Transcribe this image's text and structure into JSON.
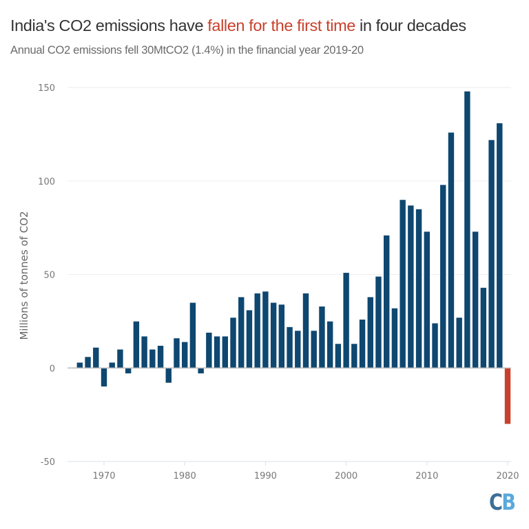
{
  "header": {
    "title_prefix": "India's CO2 emissions have ",
    "title_highlight": "fallen for the first time",
    "title_suffix": " in four decades",
    "subtitle": "Annual CO2 emissions fell 30MtCO2 (1.4%) in the financial year 2019-20"
  },
  "logo": {
    "c": "C",
    "b": "B"
  },
  "colors": {
    "bar": "#0e4770",
    "highlight": "#c8412c",
    "grid": "#eeeeee",
    "axis": "#bbbbbb"
  },
  "chart_data": {
    "type": "bar",
    "title": "India's CO2 emissions have fallen for the first time in four decades",
    "subtitle": "Annual CO2 emissions fell 30MtCO2 (1.4%) in the financial year 2019-20",
    "xlabel": "",
    "ylabel": "Millions of tonnes of CO2",
    "ylim": [
      -50,
      150
    ],
    "xlim": [
      1966,
      2021
    ],
    "yticks": [
      -50,
      0,
      50,
      100,
      150
    ],
    "xticks": [
      1970,
      1980,
      1990,
      2000,
      2010,
      2020
    ],
    "grid": true,
    "x": [
      1967,
      1968,
      1969,
      1970,
      1971,
      1972,
      1973,
      1974,
      1975,
      1976,
      1977,
      1978,
      1979,
      1980,
      1981,
      1982,
      1983,
      1984,
      1985,
      1986,
      1987,
      1988,
      1989,
      1990,
      1991,
      1992,
      1993,
      1994,
      1995,
      1996,
      1997,
      1998,
      1999,
      2000,
      2001,
      2002,
      2003,
      2004,
      2005,
      2006,
      2007,
      2008,
      2009,
      2010,
      2011,
      2012,
      2013,
      2014,
      2015,
      2016,
      2017,
      2018,
      2019,
      2020
    ],
    "values": [
      3,
      6,
      11,
      -10,
      3,
      10,
      -3,
      25,
      17,
      10,
      12,
      -8,
      16,
      14,
      35,
      -3,
      19,
      17,
      17,
      27,
      38,
      31,
      40,
      41,
      35,
      34,
      22,
      20,
      40,
      20,
      33,
      25,
      13,
      51,
      13,
      26,
      38,
      49,
      71,
      32,
      90,
      87,
      85,
      73,
      24,
      98,
      126,
      27,
      148,
      73,
      43,
      122,
      131,
      -30
    ],
    "highlight_x": [
      2020
    ]
  }
}
